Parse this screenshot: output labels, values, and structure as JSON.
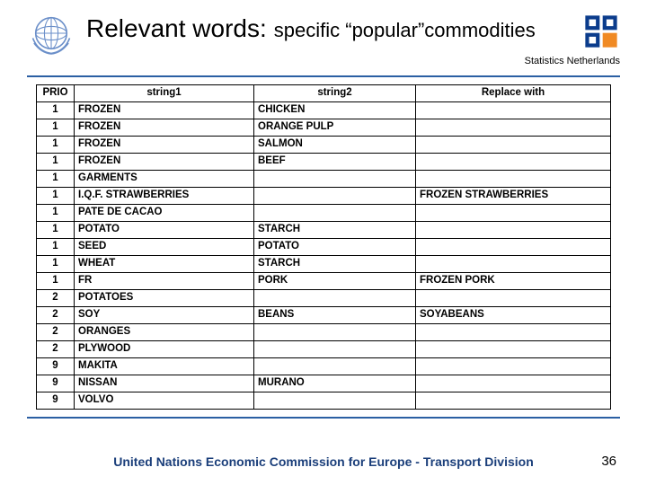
{
  "title_main": "Relevant words:",
  "title_sub": "specific “popular”commodities",
  "org_label": "Statistics Netherlands",
  "columns": [
    "PRIO",
    "string1",
    "string2",
    "Replace with"
  ],
  "rows": [
    {
      "prio": "1",
      "s1": "FROZEN",
      "s2": "CHICKEN",
      "rep": ""
    },
    {
      "prio": "1",
      "s1": "FROZEN",
      "s2": "ORANGE PULP",
      "rep": ""
    },
    {
      "prio": "1",
      "s1": "FROZEN",
      "s2": "SALMON",
      "rep": ""
    },
    {
      "prio": "1",
      "s1": "FROZEN",
      "s2": "BEEF",
      "rep": ""
    },
    {
      "prio": "1",
      "s1": "GARMENTS",
      "s2": "",
      "rep": ""
    },
    {
      "prio": "1",
      "s1": "I.Q.F. STRAWBERRIES",
      "s2": "",
      "rep": "FROZEN STRAWBERRIES"
    },
    {
      "prio": "1",
      "s1": "PATE DE CACAO",
      "s2": "",
      "rep": ""
    },
    {
      "prio": "1",
      "s1": "POTATO",
      "s2": "STARCH",
      "rep": ""
    },
    {
      "prio": "1",
      "s1": "SEED",
      "s2": "POTATO",
      "rep": ""
    },
    {
      "prio": "1",
      "s1": "WHEAT",
      "s2": "STARCH",
      "rep": ""
    },
    {
      "prio": "1",
      "s1": "FR",
      "s2": "PORK",
      "rep": "FROZEN PORK"
    },
    {
      "prio": "2",
      "s1": "POTATOES",
      "s2": "",
      "rep": ""
    },
    {
      "prio": "2",
      "s1": "SOY",
      "s2": "BEANS",
      "rep": "SOYABEANS"
    },
    {
      "prio": "2",
      "s1": "ORANGES",
      "s2": "",
      "rep": ""
    },
    {
      "prio": "2",
      "s1": "PLYWOOD",
      "s2": "",
      "rep": ""
    },
    {
      "prio": "9",
      "s1": "MAKITA",
      "s2": "",
      "rep": ""
    },
    {
      "prio": "9",
      "s1": "NISSAN",
      "s2": "MURANO",
      "rep": ""
    },
    {
      "prio": "9",
      "s1": "VOLVO",
      "s2": "",
      "rep": ""
    }
  ],
  "footer": "United Nations Economic Commission for Europe - Transport Division",
  "page_number": "36",
  "colors": {
    "accent": "#2b5fa3",
    "footer_text": "#1a3e7a",
    "un_blue": "#6b8fc9",
    "cbs_blue": "#0b3c8c",
    "cbs_orange": "#f08a24"
  }
}
